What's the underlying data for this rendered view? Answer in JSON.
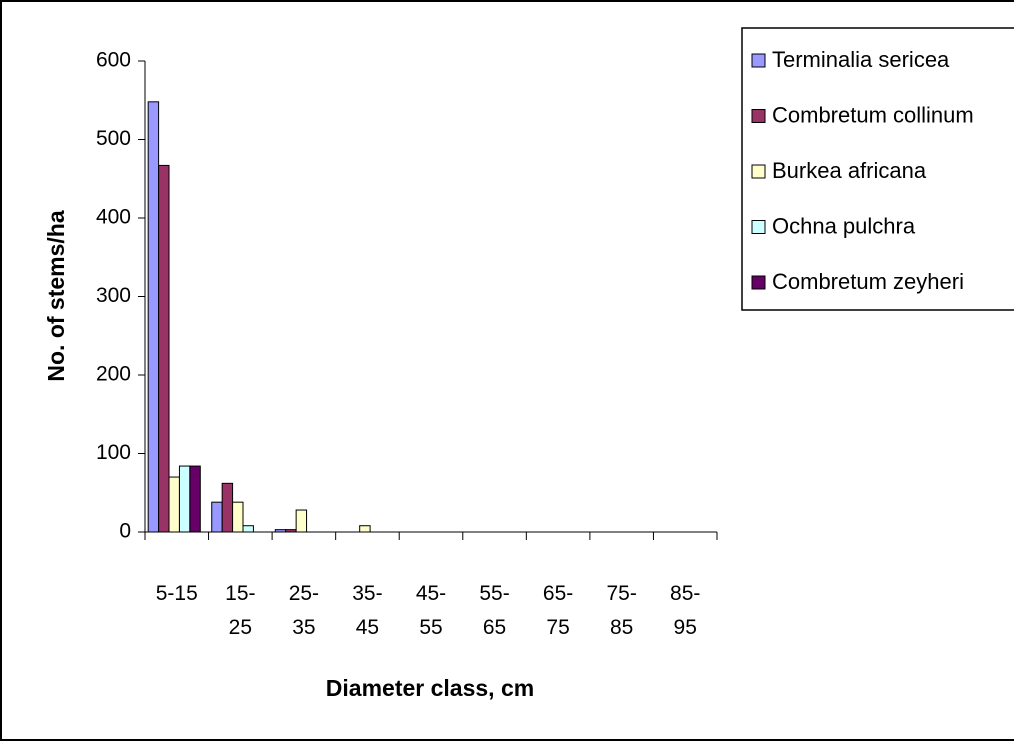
{
  "chart_data": {
    "type": "bar",
    "x_label": "Diameter class, cm",
    "y_label": "No. of stems/ha",
    "categories": [
      "5-15",
      "15-25",
      "25-35",
      "35-45",
      "45-55",
      "55-65",
      "65-75",
      "75-85",
      "85-95"
    ],
    "series": [
      {
        "name": "Terminalia sericea",
        "color": "#9999ff",
        "values": [
          548,
          38,
          3,
          0,
          0,
          0,
          0,
          0,
          0
        ]
      },
      {
        "name": "Combretum collinum",
        "color": "#993366",
        "values": [
          467,
          62,
          3,
          0,
          0,
          0,
          0,
          0,
          0
        ]
      },
      {
        "name": "Burkea africana",
        "color": "#ffffcc",
        "values": [
          70,
          38,
          28,
          8,
          0,
          0,
          0,
          0,
          0
        ]
      },
      {
        "name": "Ochna pulchra",
        "color": "#ccffff",
        "values": [
          84,
          8,
          0,
          0,
          0,
          0,
          0,
          0,
          0
        ]
      },
      {
        "name": "Combretum zeyheri",
        "color": "#660066",
        "values": [
          84,
          0,
          0,
          0,
          0,
          0,
          0,
          0,
          0
        ]
      }
    ],
    "ylim": [
      0,
      600
    ],
    "yticks": [
      0,
      100,
      200,
      300,
      400,
      500,
      600
    ],
    "legend": "right"
  }
}
